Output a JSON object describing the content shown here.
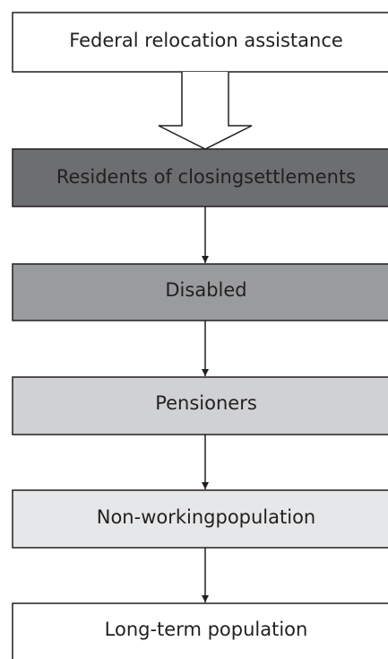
{
  "nodes": [
    {
      "label": "Federal relocation assistance"
    },
    {
      "label": "Residents of closingsettlements"
    },
    {
      "label": "Disabled"
    },
    {
      "label": "Pensioners"
    },
    {
      "label": "Non-workingpopulation"
    },
    {
      "label": "Long-term population"
    }
  ]
}
